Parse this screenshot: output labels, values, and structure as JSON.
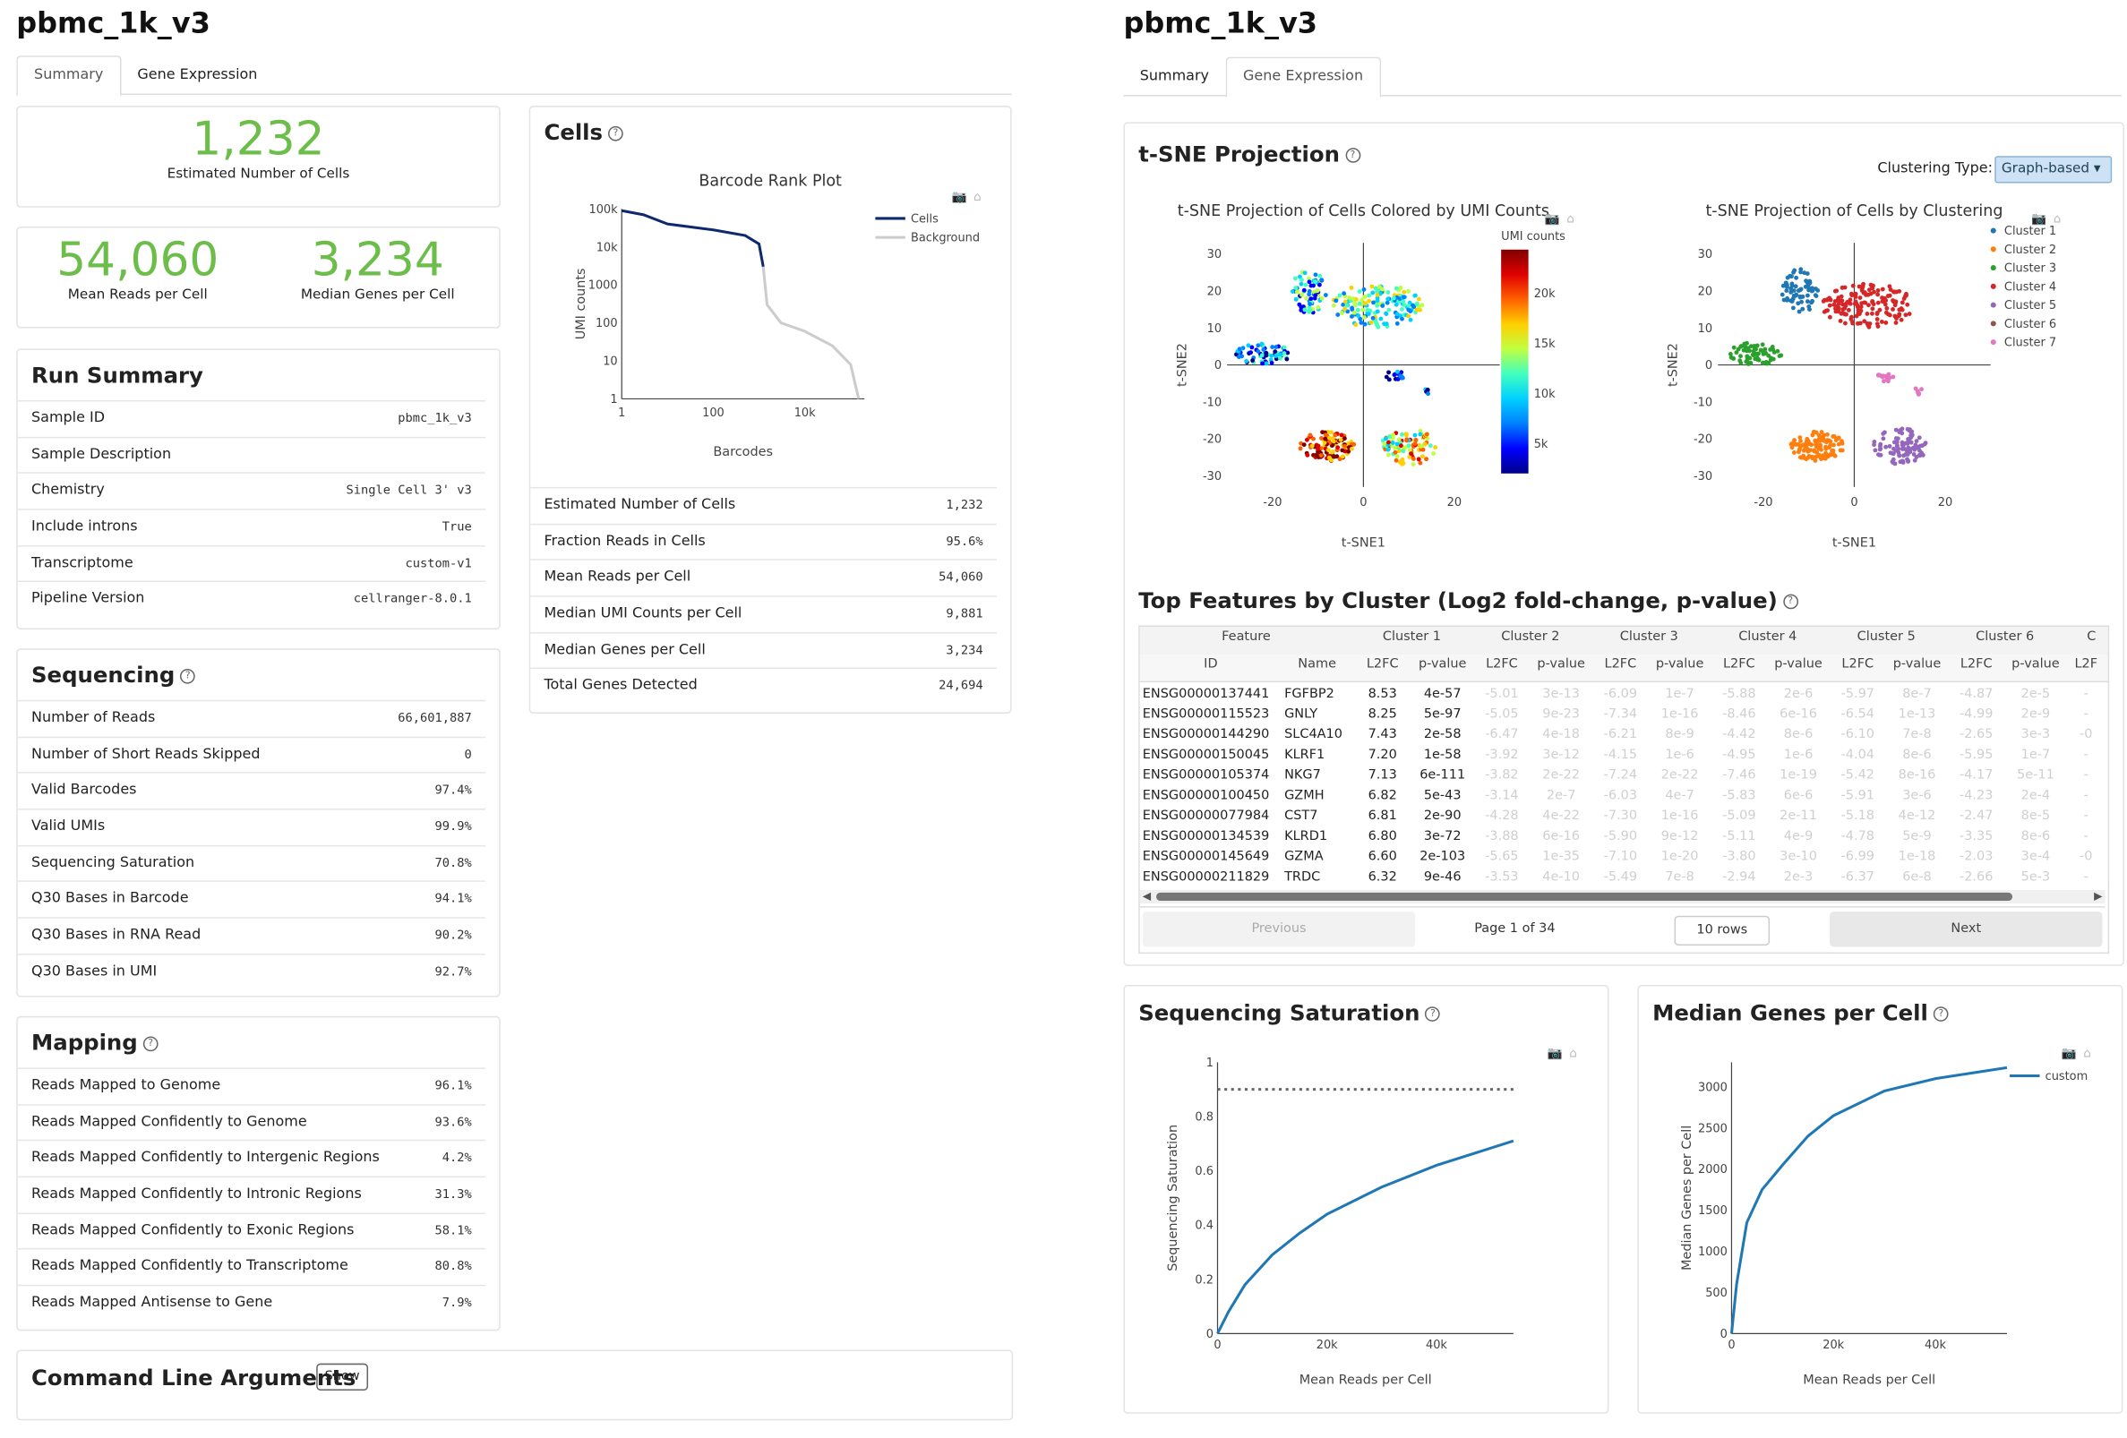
{
  "left": {
    "title": "pbmc_1k_v3",
    "tabs": [
      "Summary",
      "Gene Expression"
    ],
    "cells_estimated": {
      "value": "1,232",
      "label": "Estimated Number of Cells"
    },
    "mean_reads": {
      "value": "54,060",
      "label": "Mean Reads per Cell"
    },
    "median_genes": {
      "value": "3,234",
      "label": "Median Genes per Cell"
    },
    "run_summary": {
      "title": "Run Summary",
      "rows": [
        {
          "k": "Sample ID",
          "v": "pbmc_1k_v3"
        },
        {
          "k": "Sample Description",
          "v": ""
        },
        {
          "k": "Chemistry",
          "v": "Single Cell 3' v3"
        },
        {
          "k": "Include introns",
          "v": "True"
        },
        {
          "k": "Transcriptome",
          "v": "custom-v1"
        },
        {
          "k": "Pipeline Version",
          "v": "cellranger-8.0.1"
        }
      ]
    },
    "sequencing": {
      "title": "Sequencing",
      "rows": [
        {
          "k": "Number of Reads",
          "v": "66,601,887"
        },
        {
          "k": "Number of Short Reads Skipped",
          "v": "0"
        },
        {
          "k": "Valid Barcodes",
          "v": "97.4%"
        },
        {
          "k": "Valid UMIs",
          "v": "99.9%"
        },
        {
          "k": "Sequencing Saturation",
          "v": "70.8%"
        },
        {
          "k": "Q30 Bases in Barcode",
          "v": "94.1%"
        },
        {
          "k": "Q30 Bases in RNA Read",
          "v": "90.2%"
        },
        {
          "k": "Q30 Bases in UMI",
          "v": "92.7%"
        }
      ]
    },
    "mapping": {
      "title": "Mapping",
      "rows": [
        {
          "k": "Reads Mapped to Genome",
          "v": "96.1%"
        },
        {
          "k": "Reads Mapped Confidently to Genome",
          "v": "93.6%"
        },
        {
          "k": "Reads Mapped Confidently to Intergenic Regions",
          "v": "4.2%"
        },
        {
          "k": "Reads Mapped Confidently to Intronic Regions",
          "v": "31.3%"
        },
        {
          "k": "Reads Mapped Confidently to Exonic Regions",
          "v": "58.1%"
        },
        {
          "k": "Reads Mapped Confidently to Transcriptome",
          "v": "80.8%"
        },
        {
          "k": "Reads Mapped Antisense to Gene",
          "v": "7.9%"
        }
      ]
    },
    "command_line": {
      "title": "Command Line Arguments",
      "button": "Show"
    },
    "cells": {
      "title": "Cells",
      "rows": [
        {
          "k": "Estimated Number of Cells",
          "v": "1,232"
        },
        {
          "k": "Fraction Reads in Cells",
          "v": "95.6%"
        },
        {
          "k": "Mean Reads per Cell",
          "v": "54,060"
        },
        {
          "k": "Median UMI Counts per Cell",
          "v": "9,881"
        },
        {
          "k": "Median Genes per Cell",
          "v": "3,234"
        },
        {
          "k": "Total Genes Detected",
          "v": "24,694"
        }
      ]
    }
  },
  "right": {
    "title": "pbmc_1k_v3",
    "tabs": [
      "Summary",
      "Gene Expression"
    ],
    "tsne_title": "t-SNE Projection",
    "clustering_label": "Clustering Type:",
    "clustering_value": "Graph-based",
    "top_features_title": "Top Features by Cluster (Log2 fold-change, p-value)",
    "seq_sat_title": "Sequencing Saturation",
    "median_genes_title": "Median Genes per Cell",
    "table": {
      "group_headers": [
        "Feature",
        "Cluster 1",
        "Cluster 2",
        "Cluster 3",
        "Cluster 4",
        "Cluster 5",
        "Cluster 6",
        "C"
      ],
      "sub_headers": [
        "ID",
        "Name",
        "L2FC",
        "p-value",
        "L2FC",
        "p-value",
        "L2FC",
        "p-value",
        "L2FC",
        "p-value",
        "L2FC",
        "p-value",
        "L2FC",
        "p-value",
        "L2F"
      ],
      "rows": [
        [
          "ENSG00000137441",
          "FGFBP2",
          "8.53",
          "4e-57",
          "-5.01",
          "3e-13",
          "-6.09",
          "1e-7",
          "-5.88",
          "2e-6",
          "-5.97",
          "8e-7",
          "-4.87",
          "2e-5",
          "-"
        ],
        [
          "ENSG00000115523",
          "GNLY",
          "8.25",
          "5e-97",
          "-5.05",
          "9e-23",
          "-7.34",
          "1e-16",
          "-8.46",
          "6e-16",
          "-6.54",
          "1e-13",
          "-4.99",
          "2e-9",
          "-"
        ],
        [
          "ENSG00000144290",
          "SLC4A10",
          "7.43",
          "2e-58",
          "-6.47",
          "4e-18",
          "-6.21",
          "8e-9",
          "-4.42",
          "8e-6",
          "-6.10",
          "7e-8",
          "-2.65",
          "3e-3",
          "-0"
        ],
        [
          "ENSG00000150045",
          "KLRF1",
          "7.20",
          "1e-58",
          "-3.92",
          "3e-12",
          "-4.15",
          "1e-6",
          "-4.95",
          "1e-6",
          "-4.04",
          "8e-6",
          "-5.95",
          "1e-7",
          "-"
        ],
        [
          "ENSG00000105374",
          "NKG7",
          "7.13",
          "6e-111",
          "-3.82",
          "2e-22",
          "-7.24",
          "2e-22",
          "-7.46",
          "1e-19",
          "-5.42",
          "8e-16",
          "-4.17",
          "5e-11",
          "-"
        ],
        [
          "ENSG00000100450",
          "GZMH",
          "6.82",
          "5e-43",
          "-3.14",
          "2e-7",
          "-6.03",
          "4e-7",
          "-5.83",
          "6e-6",
          "-5.91",
          "3e-6",
          "-4.23",
          "2e-4",
          "-"
        ],
        [
          "ENSG00000077984",
          "CST7",
          "6.81",
          "2e-90",
          "-4.28",
          "4e-22",
          "-7.30",
          "1e-16",
          "-5.09",
          "2e-11",
          "-5.18",
          "4e-12",
          "-2.47",
          "8e-5",
          "-"
        ],
        [
          "ENSG00000134539",
          "KLRD1",
          "6.80",
          "3e-72",
          "-3.88",
          "6e-16",
          "-5.90",
          "9e-12",
          "-5.11",
          "4e-9",
          "-4.78",
          "5e-9",
          "-3.35",
          "8e-6",
          "-"
        ],
        [
          "ENSG00000145649",
          "GZMA",
          "6.60",
          "2e-103",
          "-5.65",
          "1e-35",
          "-7.10",
          "1e-20",
          "-3.80",
          "3e-10",
          "-6.99",
          "1e-18",
          "-2.03",
          "3e-4",
          "-0"
        ],
        [
          "ENSG00000211829",
          "TRDC",
          "6.32",
          "9e-46",
          "-3.53",
          "4e-10",
          "-5.49",
          "7e-8",
          "-2.94",
          "2e-3",
          "-6.37",
          "6e-8",
          "-2.66",
          "5e-3",
          "-"
        ]
      ],
      "prev": "Previous",
      "page_info": "Page 1 of 34",
      "rows_select": "10 rows",
      "next": "Next"
    }
  },
  "chart_data": [
    {
      "type": "line",
      "title": "Barcode Rank Plot",
      "xlabel": "Barcodes",
      "ylabel": "UMI counts",
      "xscale": "log",
      "yscale": "log",
      "x_ticks": [
        "1",
        "100",
        "10k"
      ],
      "y_ticks": [
        "1",
        "10",
        "100",
        "1000",
        "10k",
        "100k"
      ],
      "series": [
        {
          "name": "Cells",
          "color": "#0d2a6b",
          "x": [
            1,
            3,
            10,
            100,
            500,
            1000,
            1232
          ],
          "y": [
            90000,
            70000,
            40000,
            28000,
            20000,
            12000,
            3000
          ]
        },
        {
          "name": "Background",
          "color": "#cccccc",
          "x": [
            1232,
            1500,
            3000,
            10000,
            40000,
            100000,
            150000
          ],
          "y": [
            3000,
            300,
            100,
            60,
            25,
            8,
            1
          ]
        }
      ],
      "legend": "top-right"
    },
    {
      "type": "scatter",
      "title": "t-SNE Projection of Cells Colored by UMI Counts",
      "xlabel": "t-SNE1",
      "ylabel": "t-SNE2",
      "xlim": [
        -30,
        30
      ],
      "ylim": [
        -33,
        33
      ],
      "x_ticks": [
        "-20",
        "0",
        "20"
      ],
      "y_ticks": [
        "30",
        "20",
        "10",
        "0",
        "-10",
        "-20",
        "-30"
      ],
      "colorbar": {
        "title": "UMI counts",
        "ticks": [
          "20k",
          "15k",
          "10k",
          "5k"
        ]
      }
    },
    {
      "type": "scatter",
      "title": "t-SNE Projection of Cells by Clustering",
      "xlabel": "t-SNE1",
      "ylabel": "t-SNE2",
      "xlim": [
        -30,
        30
      ],
      "ylim": [
        -33,
        33
      ],
      "x_ticks": [
        "-20",
        "0",
        "20"
      ],
      "y_ticks": [
        "30",
        "20",
        "10",
        "0",
        "-10",
        "-20",
        "-30"
      ],
      "series": [
        {
          "name": "Cluster 1",
          "color": "#1f77b4"
        },
        {
          "name": "Cluster 2",
          "color": "#ff7f0e"
        },
        {
          "name": "Cluster 3",
          "color": "#2ca02c"
        },
        {
          "name": "Cluster 4",
          "color": "#d62728"
        },
        {
          "name": "Cluster 5",
          "color": "#9467bd"
        },
        {
          "name": "Cluster 6",
          "color": "#8c564b"
        },
        {
          "name": "Cluster 7",
          "color": "#e377c2"
        }
      ],
      "legend": "right"
    },
    {
      "type": "line",
      "title": "",
      "xlabel": "Mean Reads per Cell",
      "ylabel": "Sequencing Saturation",
      "xlim": [
        0,
        54060
      ],
      "ylim": [
        0,
        1
      ],
      "x_ticks": [
        "0",
        "20k",
        "40k"
      ],
      "y_ticks": [
        "0",
        "0.2",
        "0.4",
        "0.6",
        "0.8",
        "1"
      ],
      "series": [
        {
          "x": [
            0,
            2000,
            5000,
            10000,
            15000,
            20000,
            30000,
            40000,
            54060
          ],
          "y": [
            0,
            0.08,
            0.18,
            0.29,
            0.37,
            0.44,
            0.54,
            0.62,
            0.71
          ]
        }
      ],
      "reference_line": {
        "y": 0.9,
        "style": "dotted"
      }
    },
    {
      "type": "line",
      "title": "",
      "xlabel": "Mean Reads per Cell",
      "ylabel": "Median Genes per Cell",
      "xlim": [
        0,
        54060
      ],
      "ylim": [
        0,
        3300
      ],
      "x_ticks": [
        "0",
        "20k",
        "40k"
      ],
      "y_ticks": [
        "0",
        "500",
        "1000",
        "1500",
        "2000",
        "2500",
        "3000"
      ],
      "series": [
        {
          "name": "custom",
          "x": [
            0,
            1000,
            3000,
            6000,
            10000,
            15000,
            20000,
            30000,
            40000,
            54060
          ],
          "y": [
            0,
            600,
            1350,
            1750,
            2050,
            2400,
            2650,
            2950,
            3100,
            3234
          ]
        }
      ],
      "legend": "top-right"
    }
  ]
}
